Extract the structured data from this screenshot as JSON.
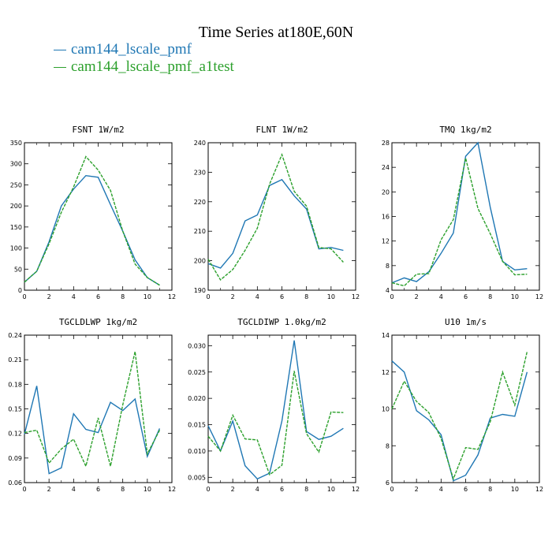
{
  "figure": {
    "title": "Time Series at180E,60N",
    "legend": [
      {
        "label": "cam144_lscale_pmf",
        "color": "#1f77b4",
        "dash": "solid"
      },
      {
        "label": "cam144_lscale_pmf_a1test",
        "color": "#2ca02c",
        "dash": "dashed"
      }
    ]
  },
  "chart_data": [
    {
      "type": "line",
      "title": "FSNT  1W/m2",
      "x": [
        0,
        1,
        2,
        3,
        4,
        5,
        6,
        7,
        8,
        9,
        10,
        11
      ],
      "xlim": [
        0,
        12
      ],
      "xticks": [
        0,
        2,
        4,
        6,
        8,
        10,
        12
      ],
      "ylim": [
        0,
        350
      ],
      "yticks": [
        0,
        50,
        100,
        150,
        200,
        250,
        300,
        350
      ],
      "ytick_labels": [
        "0",
        "50",
        "100",
        "150",
        "200",
        "250",
        "300",
        "350"
      ],
      "series": [
        {
          "name": "cam144_lscale_pmf",
          "values": [
            19,
            45,
            115,
            200,
            240,
            272,
            268,
            203,
            140,
            72,
            30,
            12
          ]
        },
        {
          "name": "cam144_lscale_pmf_a1test",
          "values": [
            19,
            45,
            110,
            185,
            245,
            317,
            285,
            237,
            140,
            62,
            30,
            12
          ]
        }
      ]
    },
    {
      "type": "line",
      "title": "FLNT  1W/m2",
      "x": [
        0,
        1,
        2,
        3,
        4,
        5,
        6,
        7,
        8,
        9,
        10,
        11
      ],
      "xlim": [
        0,
        12
      ],
      "xticks": [
        0,
        2,
        4,
        6,
        8,
        10,
        12
      ],
      "ylim": [
        190,
        240
      ],
      "yticks": [
        190,
        200,
        210,
        220,
        230,
        240
      ],
      "ytick_labels": [
        "190",
        "200",
        "210",
        "220",
        "230",
        "240"
      ],
      "series": [
        {
          "name": "cam144_lscale_pmf",
          "values": [
            199,
            197.5,
            202.5,
            213.5,
            215.5,
            225.5,
            227.5,
            222,
            217.5,
            204,
            204.5,
            203.5
          ]
        },
        {
          "name": "cam144_lscale_pmf_a1test",
          "values": [
            200.5,
            193.5,
            197,
            203.5,
            211,
            226,
            236,
            223.5,
            218.5,
            204.5,
            204,
            199.5
          ]
        }
      ]
    },
    {
      "type": "line",
      "title": "TMQ  1kg/m2",
      "x": [
        0,
        1,
        2,
        3,
        4,
        5,
        6,
        7,
        8,
        9,
        10,
        11
      ],
      "xlim": [
        0,
        12
      ],
      "xticks": [
        0,
        2,
        4,
        6,
        8,
        10,
        12
      ],
      "ylim": [
        4,
        28
      ],
      "yticks": [
        4,
        8,
        12,
        16,
        20,
        24,
        28
      ],
      "ytick_labels": [
        "4",
        "8",
        "12",
        "16",
        "20",
        "24",
        "28"
      ],
      "series": [
        {
          "name": "cam144_lscale_pmf",
          "values": [
            5.2,
            6,
            5.4,
            7,
            10,
            13.3,
            25.8,
            28,
            17.5,
            8.7,
            7.3,
            7.5
          ]
        },
        {
          "name": "cam144_lscale_pmf_a1test",
          "values": [
            5.2,
            4.7,
            6.6,
            6.7,
            12.2,
            15.5,
            25.5,
            17.3,
            13.2,
            8.7,
            6.5,
            6.6
          ]
        }
      ]
    },
    {
      "type": "line",
      "title": "TGCLDLWP  1kg/m2",
      "x": [
        0,
        1,
        2,
        3,
        4,
        5,
        6,
        7,
        8,
        9,
        10,
        11
      ],
      "xlim": [
        0,
        12
      ],
      "xticks": [
        0,
        2,
        4,
        6,
        8,
        10,
        12
      ],
      "ylim": [
        0.06,
        0.24
      ],
      "yticks": [
        0.06,
        0.09,
        0.12,
        0.15,
        0.18,
        0.21,
        0.24
      ],
      "ytick_labels": [
        "0.06",
        "0.09",
        "0.12",
        "0.15",
        "0.18",
        "0.21",
        "0.24"
      ],
      "series": [
        {
          "name": "cam144_lscale_pmf",
          "values": [
            0.119,
            0.178,
            0.071,
            0.078,
            0.144,
            0.125,
            0.121,
            0.158,
            0.148,
            0.162,
            0.092,
            0.126
          ]
        },
        {
          "name": "cam144_lscale_pmf_a1test",
          "values": [
            0.121,
            0.124,
            0.084,
            0.101,
            0.113,
            0.08,
            0.139,
            0.08,
            0.155,
            0.22,
            0.095,
            0.124
          ]
        }
      ]
    },
    {
      "type": "line",
      "title": "TGCLDIWP  1.0kg/m2",
      "x": [
        0,
        1,
        2,
        3,
        4,
        5,
        6,
        7,
        8,
        9,
        10,
        11
      ],
      "xlim": [
        0,
        12
      ],
      "xticks": [
        0,
        2,
        4,
        6,
        8,
        10,
        12
      ],
      "ylim": [
        0.004,
        0.032
      ],
      "yticks": [
        0.005,
        0.01,
        0.015,
        0.02,
        0.025,
        0.03
      ],
      "ytick_labels": [
        "0.005",
        "0.010",
        "0.015",
        "0.020",
        "0.025",
        "0.030"
      ],
      "series": [
        {
          "name": "cam144_lscale_pmf",
          "values": [
            0.0148,
            0.01,
            0.0157,
            0.0072,
            0.0047,
            0.0058,
            0.0157,
            0.031,
            0.0137,
            0.0122,
            0.0128,
            0.0143
          ]
        },
        {
          "name": "cam144_lscale_pmf_a1test",
          "values": [
            0.0128,
            0.01,
            0.0168,
            0.0123,
            0.0121,
            0.0055,
            0.0073,
            0.0252,
            0.0133,
            0.0098,
            0.0174,
            0.0173
          ]
        }
      ]
    },
    {
      "type": "line",
      "title": "U10  1m/s",
      "x": [
        0,
        1,
        2,
        3,
        4,
        5,
        6,
        7,
        8,
        9,
        10,
        11
      ],
      "xlim": [
        0,
        12
      ],
      "xticks": [
        0,
        2,
        4,
        6,
        8,
        10,
        12
      ],
      "ylim": [
        6,
        14
      ],
      "yticks": [
        6,
        8,
        10,
        12,
        14
      ],
      "ytick_labels": [
        "6",
        "8",
        "10",
        "12",
        "14"
      ],
      "series": [
        {
          "name": "cam144_lscale_pmf",
          "values": [
            12.6,
            12.0,
            9.9,
            9.4,
            8.6,
            6.1,
            6.4,
            7.5,
            9.5,
            9.7,
            9.6,
            12.0
          ]
        },
        {
          "name": "cam144_lscale_pmf_a1test",
          "values": [
            10.0,
            11.5,
            10.4,
            9.8,
            8.4,
            6.2,
            7.9,
            7.8,
            9.3,
            12.0,
            10.2,
            13.1
          ]
        }
      ]
    }
  ]
}
